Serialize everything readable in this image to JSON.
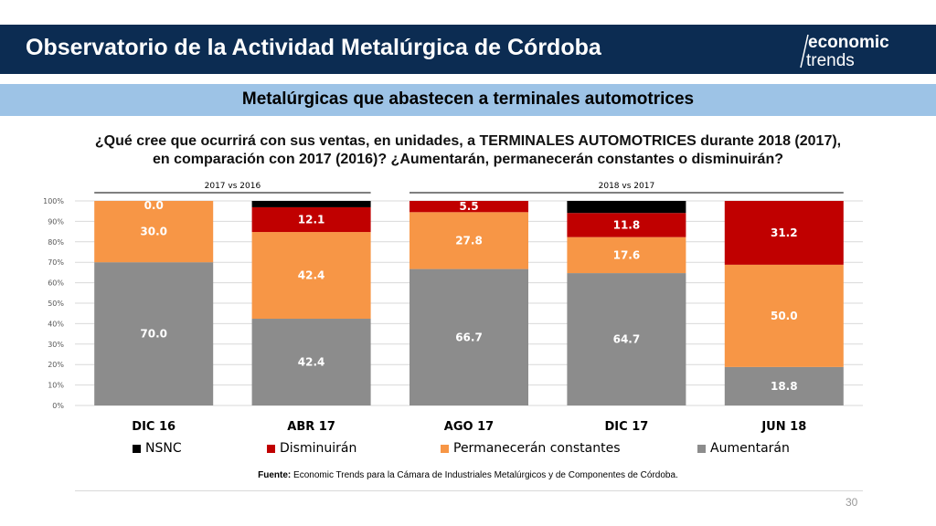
{
  "header": {
    "title": "Observatorio de la Actividad Metalúrgica de Córdoba",
    "logo_line1": "economic",
    "logo_line2": "trends"
  },
  "subheader": {
    "title": "Metalúrgicas que abastecen a terminales automotrices"
  },
  "question": {
    "line1": "¿Qué cree que ocurrirá con sus ventas, en unidades, a TERMINALES AUTOMOTRICES durante 2018 (2017),",
    "line2": "en comparación con 2017 (2016)? ¿Aumentarán, permanecerán constantes o disminuirán?"
  },
  "colors": {
    "header_bg": "#0c2c52",
    "subheader_bg": "#9dc3e6",
    "aumentaran": "#8c8c8c",
    "permaneceran": "#f79646",
    "disminuiran": "#c00000",
    "nsnc": "#000000"
  },
  "chart_data": {
    "type": "bar",
    "stacked": true,
    "categories": [
      "DIC 16",
      "ABR 17",
      "AGO 17",
      "DIC 17",
      "JUN 18"
    ],
    "group_labels": [
      {
        "label": "2017 vs 2016",
        "categories": [
          "DIC 16",
          "ABR 17"
        ]
      },
      {
        "label": "2018 vs 2017",
        "categories": [
          "AGO 17",
          "DIC 17",
          "JUN 18"
        ]
      }
    ],
    "series": [
      {
        "name": "Aumentarán",
        "values": [
          70.0,
          42.4,
          66.7,
          64.7,
          18.8
        ],
        "labels": [
          "70.0",
          "42.4",
          "66.7",
          "64.7",
          "18.8"
        ]
      },
      {
        "name": "Permanecerán constantes",
        "values": [
          30.0,
          42.4,
          27.8,
          17.6,
          50.0
        ],
        "labels": [
          "30.0",
          "42.4",
          "27.8",
          "17.6",
          "50.0"
        ]
      },
      {
        "name": "Disminuirán",
        "values": [
          0.0,
          12.1,
          5.5,
          11.8,
          31.2
        ],
        "labels": [
          "0.0",
          "12.1",
          "5.5",
          "11.8",
          "31.2"
        ]
      },
      {
        "name": "NSNC",
        "values": [
          0.0,
          3.1,
          0.0,
          5.9,
          0.0
        ],
        "labels": [
          "",
          "",
          "",
          "",
          ""
        ]
      }
    ],
    "legend_order": [
      "NSNC",
      "Disminuirán",
      "Permanecerán constantes",
      "Aumentarán"
    ],
    "yticks": [
      "0%",
      "10%",
      "20%",
      "30%",
      "40%",
      "50%",
      "60%",
      "70%",
      "80%",
      "90%",
      "100%"
    ],
    "ylim": [
      0,
      100
    ],
    "grid": true,
    "legend_position": "bottom"
  },
  "footer": {
    "source_label": "Fuente:",
    "source_text": " Economic Trends para la Cámara de Industriales Metalúrgicos y de Componentes de Córdoba."
  },
  "page_number": "30"
}
